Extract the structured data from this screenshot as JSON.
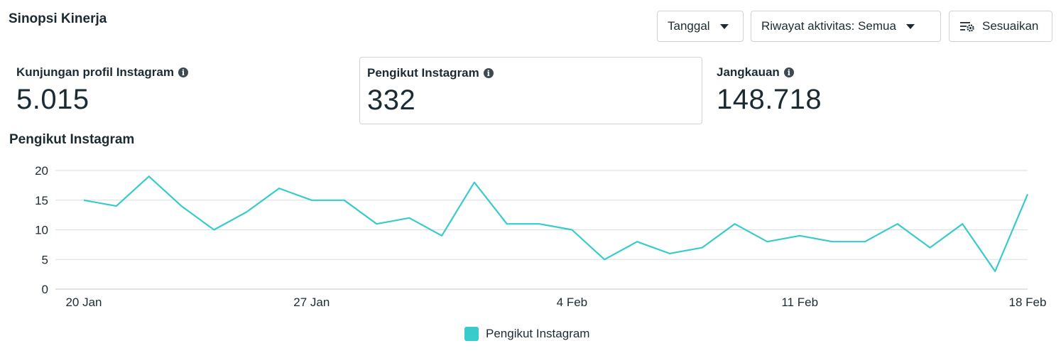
{
  "header": {
    "title": "Sinopsi Kinerja",
    "date_button": "Tanggal",
    "activity_button": "Riwayat aktivitas: Semua",
    "customize_button": "Sesuaikan"
  },
  "metrics": [
    {
      "label": "Kunjungan profil Instagram",
      "value": "5.015"
    },
    {
      "label": "Pengikut Instagram",
      "value": "332"
    },
    {
      "label": "Jangkauan",
      "value": "148.718"
    }
  ],
  "chart_title": "Pengikut Instagram",
  "colors": {
    "line": "#39cbcb",
    "grid": "#dadde1",
    "text": "#1c2b33"
  },
  "chart_data": {
    "type": "line",
    "x": [
      "20 Jan",
      "21 Jan",
      "22 Jan",
      "23 Jan",
      "24 Jan",
      "25 Jan",
      "26 Jan",
      "27 Jan",
      "28 Jan",
      "29 Jan",
      "30 Jan",
      "31 Jan",
      "1 Feb",
      "2 Feb",
      "3 Feb",
      "4 Feb",
      "5 Feb",
      "6 Feb",
      "7 Feb",
      "8 Feb",
      "9 Feb",
      "10 Feb",
      "11 Feb",
      "12 Feb",
      "13 Feb",
      "14 Feb",
      "15 Feb",
      "16 Feb",
      "17 Feb",
      "18 Feb"
    ],
    "x_tick_labels": [
      "20 Jan",
      "27 Jan",
      "4 Feb",
      "11 Feb",
      "18 Feb"
    ],
    "x_tick_index": [
      0,
      7,
      15,
      22,
      29
    ],
    "series": [
      {
        "name": "Pengikut Instagram",
        "values": [
          15,
          14,
          19,
          14,
          10,
          13,
          17,
          15,
          15,
          11,
          12,
          9,
          18,
          11,
          11,
          10,
          5,
          8,
          6,
          7,
          11,
          8,
          9,
          8,
          8,
          11,
          7,
          11,
          3,
          16
        ]
      }
    ],
    "y_ticks": [
      0,
      5,
      10,
      15,
      20
    ],
    "ylim": [
      0,
      20
    ],
    "grid": true,
    "legend": "bottom-center"
  }
}
